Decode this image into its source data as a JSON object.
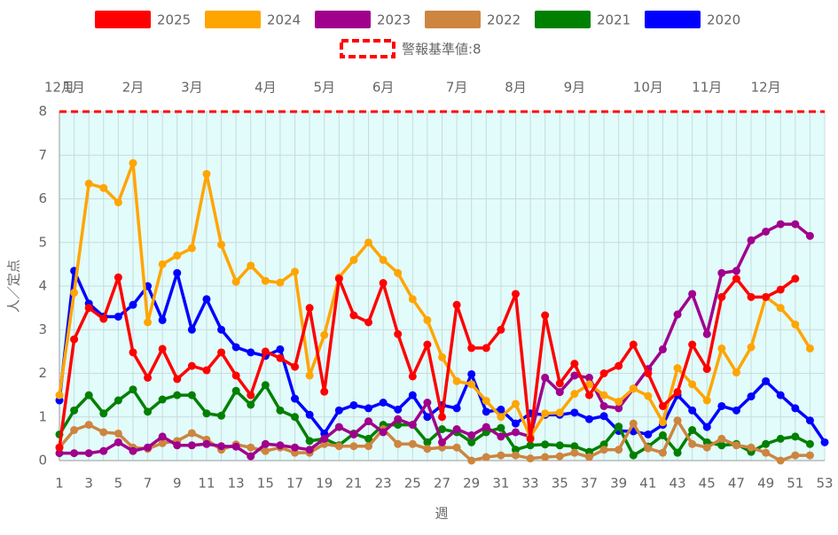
{
  "chart_data": {
    "type": "line",
    "x_label": "週",
    "y_label": "人／定点",
    "x": [
      1,
      2,
      3,
      4,
      5,
      6,
      7,
      8,
      9,
      10,
      11,
      12,
      13,
      14,
      15,
      16,
      17,
      18,
      19,
      20,
      21,
      22,
      23,
      24,
      25,
      26,
      27,
      28,
      29,
      30,
      31,
      32,
      33,
      34,
      35,
      36,
      37,
      38,
      39,
      40,
      41,
      42,
      43,
      44,
      45,
      46,
      47,
      48,
      49,
      50,
      51,
      52,
      53
    ],
    "xlim": [
      1,
      53
    ],
    "xticks": [
      1,
      3,
      5,
      7,
      9,
      11,
      13,
      15,
      17,
      19,
      21,
      23,
      25,
      27,
      29,
      31,
      33,
      35,
      37,
      39,
      41,
      43,
      45,
      47,
      49,
      51,
      53
    ],
    "ylim": [
      0,
      8
    ],
    "yticks": [
      0,
      1,
      2,
      3,
      4,
      5,
      6,
      7,
      8
    ],
    "grid": true,
    "top_ticks": [
      {
        "value": 1,
        "label": "12月"
      },
      {
        "value": 2,
        "label": "1月"
      },
      {
        "value": 6,
        "label": "2月"
      },
      {
        "value": 10,
        "label": "3月"
      },
      {
        "value": 15,
        "label": "4月"
      },
      {
        "value": 19,
        "label": "5月"
      },
      {
        "value": 23,
        "label": "6月"
      },
      {
        "value": 28,
        "label": "7月"
      },
      {
        "value": 32,
        "label": "8月"
      },
      {
        "value": 36,
        "label": "9月"
      },
      {
        "value": 41,
        "label": "10月"
      },
      {
        "value": 45,
        "label": "11月"
      },
      {
        "value": 49,
        "label": "12月"
      }
    ],
    "threshold": {
      "name": "警報基準値:8",
      "value": 8,
      "color": "#ff0000"
    },
    "series": [
      {
        "name": "2025",
        "color": "#ff0000",
        "values": [
          0.3,
          2.78,
          3.5,
          3.25,
          4.2,
          2.48,
          1.9,
          2.56,
          1.87,
          2.17,
          2.07,
          2.48,
          1.95,
          1.5,
          2.5,
          2.35,
          2.15,
          3.5,
          1.58,
          4.17,
          3.33,
          3.17,
          4.07,
          2.9,
          1.93,
          2.66,
          1.0,
          3.57,
          2.58,
          2.58,
          3.0,
          3.82,
          0.5,
          3.33,
          1.77,
          2.22,
          1.5,
          2.0,
          2.17,
          2.66,
          2.0,
          1.25,
          1.57,
          2.66,
          2.1,
          3.75,
          4.17,
          3.75,
          3.75,
          3.92,
          4.17,
          null,
          null
        ]
      },
      {
        "name": "2024",
        "color": "#ffa500",
        "values": [
          1.5,
          3.85,
          6.35,
          6.25,
          5.92,
          6.82,
          3.17,
          4.5,
          4.7,
          4.87,
          6.57,
          4.95,
          4.1,
          4.47,
          4.12,
          4.08,
          4.33,
          1.95,
          2.88,
          4.2,
          4.6,
          5.0,
          4.6,
          4.3,
          3.7,
          3.22,
          2.37,
          1.82,
          1.75,
          1.37,
          1.0,
          1.3,
          0.55,
          1.08,
          1.1,
          1.53,
          1.75,
          1.5,
          1.35,
          1.65,
          1.48,
          0.88,
          2.12,
          1.75,
          1.38,
          2.57,
          2.02,
          2.6,
          3.75,
          3.5,
          3.12,
          2.57,
          null
        ]
      },
      {
        "name": "2023",
        "color": "#a0008c",
        "values": [
          0.17,
          0.17,
          0.17,
          0.22,
          0.42,
          0.22,
          0.3,
          0.55,
          0.35,
          0.35,
          0.38,
          0.33,
          0.32,
          0.1,
          0.38,
          0.35,
          0.3,
          0.25,
          0.5,
          0.77,
          0.6,
          0.9,
          0.65,
          0.95,
          0.82,
          1.33,
          0.42,
          0.72,
          0.58,
          0.77,
          0.55,
          0.65,
          0.55,
          1.9,
          1.57,
          1.95,
          1.9,
          1.25,
          1.2,
          1.65,
          2.1,
          2.55,
          3.35,
          3.82,
          2.9,
          4.3,
          4.35,
          5.05,
          5.25,
          5.42,
          5.42,
          5.15,
          null
        ]
      },
      {
        "name": "2022",
        "color": "#cd853f",
        "values": [
          0.3,
          0.7,
          0.82,
          0.65,
          0.62,
          0.3,
          0.27,
          0.4,
          0.45,
          0.63,
          0.48,
          0.25,
          0.37,
          0.3,
          0.22,
          0.3,
          0.18,
          0.18,
          0.38,
          0.33,
          0.33,
          0.33,
          0.72,
          0.38,
          0.38,
          0.27,
          0.3,
          0.3,
          0.0,
          0.08,
          0.12,
          0.12,
          0.05,
          0.08,
          0.1,
          0.18,
          0.08,
          0.25,
          0.25,
          0.85,
          0.28,
          0.18,
          0.92,
          0.38,
          0.3,
          0.5,
          0.35,
          0.3,
          0.18,
          0.0,
          0.12,
          0.12,
          null
        ]
      },
      {
        "name": "2021",
        "color": "#008000",
        "values": [
          0.6,
          1.15,
          1.5,
          1.08,
          1.38,
          1.63,
          1.12,
          1.4,
          1.5,
          1.5,
          1.08,
          1.03,
          1.6,
          1.28,
          1.73,
          1.15,
          1.0,
          0.45,
          0.5,
          0.35,
          0.62,
          0.5,
          0.82,
          0.82,
          0.82,
          0.42,
          0.72,
          0.65,
          0.42,
          0.65,
          0.75,
          0.25,
          0.35,
          0.37,
          0.35,
          0.33,
          0.2,
          0.37,
          0.78,
          0.12,
          0.32,
          0.58,
          0.18,
          0.7,
          0.42,
          0.35,
          0.38,
          0.2,
          0.38,
          0.5,
          0.55,
          0.38,
          null
        ]
      },
      {
        "name": "2020",
        "color": "#0000ff",
        "values": [
          1.38,
          4.35,
          3.6,
          3.3,
          3.3,
          3.57,
          4.0,
          3.22,
          4.3,
          3.0,
          3.7,
          3.0,
          2.6,
          2.48,
          2.4,
          2.55,
          1.42,
          1.05,
          0.62,
          1.15,
          1.27,
          1.2,
          1.33,
          1.17,
          1.5,
          1.0,
          1.27,
          1.2,
          1.98,
          1.12,
          1.17,
          0.85,
          1.08,
          1.05,
          1.05,
          1.1,
          0.95,
          1.02,
          0.68,
          0.67,
          0.6,
          0.82,
          1.5,
          1.15,
          0.77,
          1.25,
          1.15,
          1.47,
          1.82,
          1.5,
          1.2,
          0.92,
          0.42
        ]
      }
    ]
  }
}
